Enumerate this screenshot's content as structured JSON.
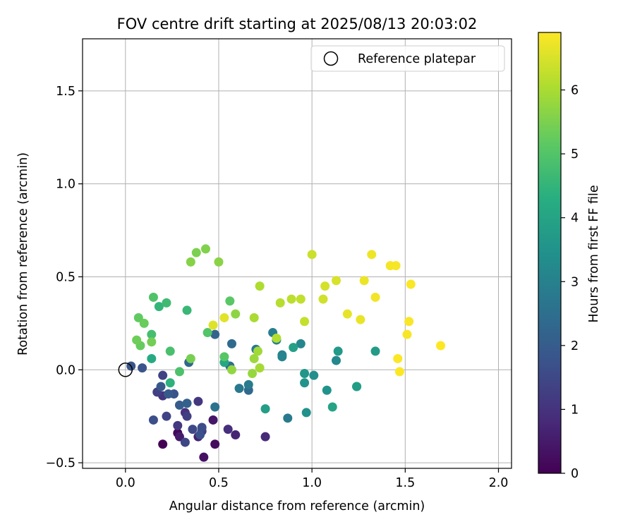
{
  "chart_data": {
    "type": "scatter",
    "title": "FOV centre drift starting at 2025/08/13 20:03:02",
    "xlabel": "Angular distance from reference (arcmin)",
    "ylabel": "Rotation from reference (arcmin)",
    "xlim": [
      -0.23,
      2.07
    ],
    "ylim": [
      -0.53,
      1.78
    ],
    "xticks": [
      0.0,
      0.5,
      1.0,
      1.5,
      2.0
    ],
    "xtick_labels": [
      "0.0",
      "0.5",
      "1.0",
      "1.5",
      "2.0"
    ],
    "yticks": [
      -0.5,
      0.0,
      0.5,
      1.0,
      1.5
    ],
    "ytick_labels": [
      "−0.5",
      "0.0",
      "0.5",
      "1.0",
      "1.5"
    ],
    "grid": true,
    "legend": {
      "placement": "top-right",
      "entries": [
        {
          "label": "Reference platepar",
          "marker": "open-circle"
        }
      ]
    },
    "reference_point": {
      "x": 0.0,
      "y": 0.0
    },
    "colorbar": {
      "label": "Hours from first FF file",
      "min": 0,
      "max": 6.9,
      "ticks": [
        0,
        1,
        2,
        3,
        4,
        5,
        6
      ],
      "colormap": "viridis"
    },
    "points": [
      {
        "x": 0.2,
        "y": -0.4,
        "h": 0.0
      },
      {
        "x": 0.28,
        "y": -0.34,
        "h": 0.1
      },
      {
        "x": 0.48,
        "y": -0.4,
        "h": 0.2
      },
      {
        "x": 0.42,
        "y": -0.47,
        "h": 0.3
      },
      {
        "x": 0.47,
        "y": -0.27,
        "h": 0.4
      },
      {
        "x": 0.29,
        "y": -0.36,
        "h": 0.5
      },
      {
        "x": 0.39,
        "y": -0.36,
        "h": 0.6
      },
      {
        "x": 0.59,
        "y": -0.35,
        "h": 0.7
      },
      {
        "x": 0.75,
        "y": -0.36,
        "h": 0.8
      },
      {
        "x": 0.55,
        "y": -0.32,
        "h": 0.9
      },
      {
        "x": 0.32,
        "y": -0.23,
        "h": 1.0
      },
      {
        "x": 0.2,
        "y": -0.14,
        "h": 1.05
      },
      {
        "x": 0.39,
        "y": -0.17,
        "h": 1.1
      },
      {
        "x": 0.28,
        "y": -0.3,
        "h": 1.15
      },
      {
        "x": 0.41,
        "y": -0.33,
        "h": 1.2
      },
      {
        "x": 0.33,
        "y": -0.25,
        "h": 1.25
      },
      {
        "x": 0.17,
        "y": -0.12,
        "h": 1.3
      },
      {
        "x": 0.2,
        "y": -0.03,
        "h": 1.35
      },
      {
        "x": 0.22,
        "y": -0.25,
        "h": 1.4
      },
      {
        "x": 0.32,
        "y": -0.39,
        "h": 1.45
      },
      {
        "x": 0.36,
        "y": -0.32,
        "h": 1.5
      },
      {
        "x": 0.41,
        "y": -0.31,
        "h": 1.6
      },
      {
        "x": 0.15,
        "y": -0.27,
        "h": 1.65
      },
      {
        "x": 0.4,
        "y": -0.35,
        "h": 1.7
      },
      {
        "x": 0.26,
        "y": -0.13,
        "h": 1.75
      },
      {
        "x": 0.09,
        "y": 0.01,
        "h": 1.8
      },
      {
        "x": 0.03,
        "y": 0.02,
        "h": 1.85
      },
      {
        "x": 0.19,
        "y": -0.09,
        "h": 1.9
      },
      {
        "x": 0.23,
        "y": -0.13,
        "h": 1.95
      },
      {
        "x": 0.29,
        "y": -0.19,
        "h": 2.0
      },
      {
        "x": 0.33,
        "y": -0.18,
        "h": 2.1
      },
      {
        "x": 0.48,
        "y": 0.19,
        "h": 2.2
      },
      {
        "x": 0.34,
        "y": 0.04,
        "h": 2.3
      },
      {
        "x": 0.66,
        "y": -0.11,
        "h": 2.35
      },
      {
        "x": 0.57,
        "y": 0.14,
        "h": 2.4
      },
      {
        "x": 0.56,
        "y": 0.02,
        "h": 2.5
      },
      {
        "x": 0.48,
        "y": -0.2,
        "h": 2.6
      },
      {
        "x": 0.7,
        "y": 0.11,
        "h": 2.7
      },
      {
        "x": 0.61,
        "y": -0.1,
        "h": 2.75
      },
      {
        "x": 0.87,
        "y": -0.26,
        "h": 2.8
      },
      {
        "x": 0.66,
        "y": -0.08,
        "h": 2.85
      },
      {
        "x": 0.79,
        "y": 0.2,
        "h": 2.9
      },
      {
        "x": 0.81,
        "y": 0.16,
        "h": 3.0
      },
      {
        "x": 0.84,
        "y": 0.07,
        "h": 3.05
      },
      {
        "x": 0.84,
        "y": 0.08,
        "h": 3.1
      },
      {
        "x": 0.94,
        "y": 0.14,
        "h": 3.15
      },
      {
        "x": 1.13,
        "y": 0.05,
        "h": 3.2
      },
      {
        "x": 1.24,
        "y": -0.09,
        "h": 3.3
      },
      {
        "x": 1.01,
        "y": -0.03,
        "h": 3.4
      },
      {
        "x": 0.97,
        "y": -0.23,
        "h": 3.45
      },
      {
        "x": 1.08,
        "y": -0.11,
        "h": 3.5
      },
      {
        "x": 0.96,
        "y": -0.07,
        "h": 3.55
      },
      {
        "x": 0.96,
        "y": -0.02,
        "h": 3.6
      },
      {
        "x": 1.14,
        "y": 0.1,
        "h": 3.7
      },
      {
        "x": 1.34,
        "y": 0.1,
        "h": 3.75
      },
      {
        "x": 1.24,
        "y": -0.09,
        "h": 3.8
      },
      {
        "x": 0.75,
        "y": -0.21,
        "h": 3.85
      },
      {
        "x": 0.9,
        "y": 0.12,
        "h": 3.9
      },
      {
        "x": 1.11,
        "y": -0.2,
        "h": 4.0
      },
      {
        "x": 0.53,
        "y": 0.04,
        "h": 4.1
      },
      {
        "x": 0.14,
        "y": 0.06,
        "h": 4.2
      },
      {
        "x": 0.24,
        "y": -0.07,
        "h": 4.4
      },
      {
        "x": 0.18,
        "y": 0.34,
        "h": 4.5
      },
      {
        "x": 0.33,
        "y": 0.32,
        "h": 4.6
      },
      {
        "x": 0.22,
        "y": 0.36,
        "h": 4.7
      },
      {
        "x": 0.14,
        "y": 0.19,
        "h": 4.8
      },
      {
        "x": 0.24,
        "y": 0.1,
        "h": 4.85
      },
      {
        "x": 0.29,
        "y": -0.01,
        "h": 4.9
      },
      {
        "x": 0.15,
        "y": 0.39,
        "h": 4.95
      },
      {
        "x": 0.44,
        "y": 0.2,
        "h": 5.0
      },
      {
        "x": 0.53,
        "y": 0.07,
        "h": 5.05
      },
      {
        "x": 0.56,
        "y": 0.37,
        "h": 5.1
      },
      {
        "x": 0.07,
        "y": 0.28,
        "h": 5.2
      },
      {
        "x": 0.08,
        "y": 0.13,
        "h": 5.25
      },
      {
        "x": 0.1,
        "y": 0.25,
        "h": 5.3
      },
      {
        "x": 0.06,
        "y": 0.16,
        "h": 5.35
      },
      {
        "x": 0.14,
        "y": 0.15,
        "h": 5.4
      },
      {
        "x": 0.35,
        "y": 0.06,
        "h": 5.45
      },
      {
        "x": 0.38,
        "y": 0.63,
        "h": 5.5
      },
      {
        "x": 0.43,
        "y": 0.65,
        "h": 5.55
      },
      {
        "x": 0.35,
        "y": 0.58,
        "h": 5.6
      },
      {
        "x": 0.5,
        "y": 0.58,
        "h": 5.65
      },
      {
        "x": 0.59,
        "y": 0.3,
        "h": 5.7
      },
      {
        "x": 0.57,
        "y": 0.0,
        "h": 5.75
      },
      {
        "x": 0.68,
        "y": -0.02,
        "h": 5.8
      },
      {
        "x": 0.69,
        "y": 0.06,
        "h": 5.85
      },
      {
        "x": 0.71,
        "y": 0.1,
        "h": 5.9
      },
      {
        "x": 0.72,
        "y": 0.01,
        "h": 5.95
      },
      {
        "x": 0.69,
        "y": 0.28,
        "h": 6.0
      },
      {
        "x": 0.72,
        "y": 0.45,
        "h": 6.05
      },
      {
        "x": 0.81,
        "y": 0.17,
        "h": 6.1
      },
      {
        "x": 0.83,
        "y": 0.36,
        "h": 6.15
      },
      {
        "x": 0.89,
        "y": 0.38,
        "h": 6.2
      },
      {
        "x": 0.94,
        "y": 0.38,
        "h": 6.25
      },
      {
        "x": 0.96,
        "y": 0.26,
        "h": 6.3
      },
      {
        "x": 1.0,
        "y": 0.62,
        "h": 6.35
      },
      {
        "x": 1.06,
        "y": 0.38,
        "h": 6.4
      },
      {
        "x": 1.07,
        "y": 0.45,
        "h": 6.45
      },
      {
        "x": 1.13,
        "y": 0.48,
        "h": 6.5
      },
      {
        "x": 0.47,
        "y": 0.24,
        "h": 6.55
      },
      {
        "x": 0.53,
        "y": 0.28,
        "h": 6.6
      },
      {
        "x": 1.19,
        "y": 0.3,
        "h": 6.65
      },
      {
        "x": 1.26,
        "y": 0.27,
        "h": 6.7
      },
      {
        "x": 1.28,
        "y": 0.48,
        "h": 6.72
      },
      {
        "x": 1.32,
        "y": 0.62,
        "h": 6.75
      },
      {
        "x": 1.34,
        "y": 0.39,
        "h": 6.78
      },
      {
        "x": 1.42,
        "y": 0.56,
        "h": 6.8
      },
      {
        "x": 1.45,
        "y": 0.56,
        "h": 6.82
      },
      {
        "x": 1.51,
        "y": 0.19,
        "h": 6.84
      },
      {
        "x": 1.52,
        "y": 0.26,
        "h": 6.86
      },
      {
        "x": 1.53,
        "y": 0.46,
        "h": 6.87
      },
      {
        "x": 1.46,
        "y": 0.06,
        "h": 6.88
      },
      {
        "x": 1.47,
        "y": -0.01,
        "h": 6.89
      },
      {
        "x": 1.69,
        "y": 0.13,
        "h": 6.9
      }
    ]
  }
}
